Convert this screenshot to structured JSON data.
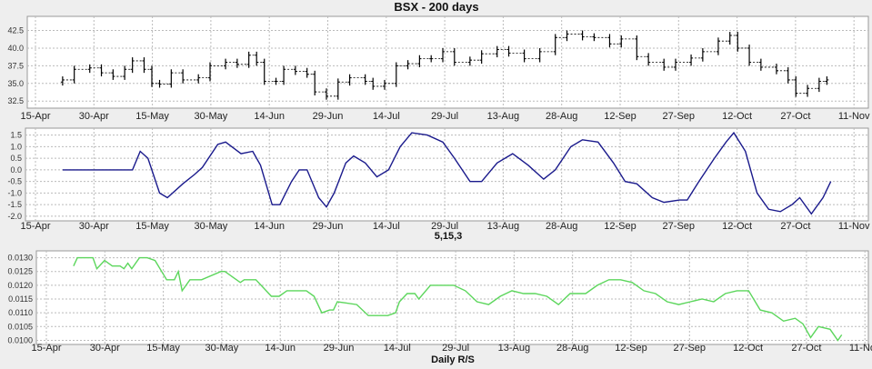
{
  "chart_data": [
    {
      "type": "ohlc",
      "title": "BSX - 200 days",
      "x_ticks": [
        "15-Apr",
        "30-Apr",
        "15-May",
        "30-May",
        "14-Jun",
        "29-Jun",
        "14-Jul",
        "29-Jul",
        "13-Aug",
        "28-Aug",
        "12-Sep",
        "27-Sep",
        "12-Oct",
        "27-Oct",
        "11-Nov"
      ],
      "y_ticks": [
        "32.5",
        "35.0",
        "37.5",
        "40.0",
        "42.5"
      ],
      "ylim": [
        31.5,
        44.5
      ],
      "grid": true,
      "color": "#000000",
      "points": [
        [
          "04-22",
          35.5
        ],
        [
          "04-25",
          37.0
        ],
        [
          "04-29",
          37.2
        ],
        [
          "05-02",
          36.5
        ],
        [
          "05-05",
          36.0
        ],
        [
          "05-08",
          37.0
        ],
        [
          "05-10",
          38.2
        ],
        [
          "05-13",
          37.0
        ],
        [
          "05-15",
          35.0
        ],
        [
          "05-17",
          34.9
        ],
        [
          "05-20",
          36.5
        ],
        [
          "05-23",
          35.5
        ],
        [
          "05-27",
          35.8
        ],
        [
          "05-30",
          37.5
        ],
        [
          "06-03",
          38.0
        ],
        [
          "06-06",
          37.7
        ],
        [
          "06-09",
          39.0
        ],
        [
          "06-11",
          38.0
        ],
        [
          "06-13",
          35.3
        ],
        [
          "06-16",
          35.3
        ],
        [
          "06-18",
          37.0
        ],
        [
          "06-21",
          36.7
        ],
        [
          "06-24",
          36.3
        ],
        [
          "06-26",
          33.8
        ],
        [
          "06-29",
          33.2
        ],
        [
          "07-02",
          35.2
        ],
        [
          "07-05",
          35.8
        ],
        [
          "07-09",
          35.3
        ],
        [
          "07-11",
          34.6
        ],
        [
          "07-14",
          35.0
        ],
        [
          "07-17",
          37.5
        ],
        [
          "07-20",
          37.8
        ],
        [
          "07-23",
          38.5
        ],
        [
          "07-26",
          38.5
        ],
        [
          "07-29",
          39.5
        ],
        [
          "08-01",
          38.0
        ],
        [
          "08-05",
          38.3
        ],
        [
          "08-08",
          39.2
        ],
        [
          "08-12",
          39.8
        ],
        [
          "08-15",
          39.3
        ],
        [
          "08-19",
          38.5
        ],
        [
          "08-23",
          39.5
        ],
        [
          "08-27",
          41.5
        ],
        [
          "08-30",
          42.0
        ],
        [
          "09-03",
          41.6
        ],
        [
          "09-06",
          41.5
        ],
        [
          "09-10",
          40.6
        ],
        [
          "09-13",
          41.3
        ],
        [
          "09-17",
          38.8
        ],
        [
          "09-20",
          38.0
        ],
        [
          "09-24",
          37.3
        ],
        [
          "09-27",
          38.0
        ],
        [
          "10-01",
          38.6
        ],
        [
          "10-04",
          39.5
        ],
        [
          "10-08",
          41.0
        ],
        [
          "10-11",
          41.8
        ],
        [
          "10-13",
          40.0
        ],
        [
          "10-16",
          38.0
        ],
        [
          "10-19",
          37.3
        ],
        [
          "10-23",
          36.8
        ],
        [
          "10-26",
          35.5
        ],
        [
          "10-28",
          33.6
        ],
        [
          "10-31",
          34.3
        ],
        [
          "11-03",
          35.3
        ],
        [
          "11-05",
          35.5
        ]
      ]
    },
    {
      "type": "line",
      "xlabel": "5,15,3",
      "x_ticks": [
        "15-Apr",
        "30-Apr",
        "15-May",
        "30-May",
        "14-Jun",
        "29-Jun",
        "14-Jul",
        "29-Jul",
        "13-Aug",
        "28-Aug",
        "12-Sep",
        "27-Sep",
        "12-Oct",
        "27-Oct",
        "11-Nov"
      ],
      "y_ticks": [
        "-2.0",
        "-1.5",
        "-1.0",
        "-0.5",
        "0.0",
        "0.5",
        "1.0",
        "1.5"
      ],
      "ylim": [
        -2.2,
        1.8
      ],
      "grid": true,
      "color": "#1a1a8c",
      "points": [
        [
          "04-22",
          0
        ],
        [
          "05-10",
          0
        ],
        [
          "05-12",
          0.8
        ],
        [
          "05-14",
          0.5
        ],
        [
          "05-17",
          -1.0
        ],
        [
          "05-19",
          -1.2
        ],
        [
          "05-23",
          -0.6
        ],
        [
          "05-26",
          -0.2
        ],
        [
          "05-28",
          0.1
        ],
        [
          "06-01",
          1.1
        ],
        [
          "06-03",
          1.2
        ],
        [
          "06-07",
          0.7
        ],
        [
          "06-10",
          0.8
        ],
        [
          "06-12",
          0.2
        ],
        [
          "06-15",
          -1.5
        ],
        [
          "06-17",
          -1.5
        ],
        [
          "06-20",
          -0.5
        ],
        [
          "06-22",
          0.0
        ],
        [
          "06-24",
          0.0
        ],
        [
          "06-27",
          -1.2
        ],
        [
          "06-29",
          -1.6
        ],
        [
          "07-01",
          -1.0
        ],
        [
          "07-04",
          0.3
        ],
        [
          "07-06",
          0.6
        ],
        [
          "07-09",
          0.3
        ],
        [
          "07-12",
          -0.3
        ],
        [
          "07-15",
          0.0
        ],
        [
          "07-18",
          1.0
        ],
        [
          "07-21",
          1.6
        ],
        [
          "07-25",
          1.5
        ],
        [
          "07-29",
          1.2
        ],
        [
          "08-01",
          0.5
        ],
        [
          "08-05",
          -0.5
        ],
        [
          "08-08",
          -0.5
        ],
        [
          "08-12",
          0.3
        ],
        [
          "08-16",
          0.7
        ],
        [
          "08-20",
          0.2
        ],
        [
          "08-24",
          -0.4
        ],
        [
          "08-27",
          0.0
        ],
        [
          "08-31",
          1.0
        ],
        [
          "09-03",
          1.3
        ],
        [
          "09-07",
          1.2
        ],
        [
          "09-11",
          0.3
        ],
        [
          "09-14",
          -0.5
        ],
        [
          "09-17",
          -0.6
        ],
        [
          "09-21",
          -1.2
        ],
        [
          "09-24",
          -1.4
        ],
        [
          "09-28",
          -1.3
        ],
        [
          "09-30",
          -1.3
        ],
        [
          "10-03",
          -0.5
        ],
        [
          "10-07",
          0.5
        ],
        [
          "10-10",
          1.2
        ],
        [
          "10-12",
          1.6
        ],
        [
          "10-15",
          0.8
        ],
        [
          "10-18",
          -1.0
        ],
        [
          "10-21",
          -1.7
        ],
        [
          "10-24",
          -1.8
        ],
        [
          "10-27",
          -1.5
        ],
        [
          "10-29",
          -1.2
        ],
        [
          "11-01",
          -1.9
        ],
        [
          "11-04",
          -1.2
        ],
        [
          "11-06",
          -0.5
        ]
      ]
    },
    {
      "type": "line",
      "xlabel": "Daily R/S",
      "x_ticks": [
        "15-Apr",
        "30-Apr",
        "15-May",
        "30-May",
        "14-Jun",
        "29-Jun",
        "14-Jul",
        "29-Jul",
        "13-Aug",
        "28-Aug",
        "12-Sep",
        "27-Sep",
        "12-Oct",
        "27-Oct",
        "11-Nov"
      ],
      "y_ticks": [
        "0.0100",
        "0.0105",
        "0.0110",
        "0.0115",
        "0.0120",
        "0.0125",
        "0.0130"
      ],
      "ylim": [
        0.00985,
        0.01325
      ],
      "grid": true,
      "color": "#5cd65c",
      "points": [
        [
          "04-22",
          0.0127
        ],
        [
          "04-23",
          0.013
        ],
        [
          "04-27",
          0.013
        ],
        [
          "04-28",
          0.0126
        ],
        [
          "04-30",
          0.0129
        ],
        [
          "05-02",
          0.0127
        ],
        [
          "05-04",
          0.0127
        ],
        [
          "05-05",
          0.0126
        ],
        [
          "05-06",
          0.0128
        ],
        [
          "05-07",
          0.0126
        ],
        [
          "05-09",
          0.013
        ],
        [
          "05-11",
          0.013
        ],
        [
          "05-13",
          0.0129
        ],
        [
          "05-16",
          0.0122
        ],
        [
          "05-18",
          0.0122
        ],
        [
          "05-19",
          0.0125
        ],
        [
          "05-20",
          0.0118
        ],
        [
          "05-22",
          0.0122
        ],
        [
          "05-25",
          0.0122
        ],
        [
          "05-30",
          0.0125
        ],
        [
          "05-31",
          0.0125
        ],
        [
          "06-04",
          0.0121
        ],
        [
          "06-05",
          0.0122
        ],
        [
          "06-08",
          0.0122
        ],
        [
          "06-12",
          0.0116
        ],
        [
          "06-14",
          0.0116
        ],
        [
          "06-16",
          0.0118
        ],
        [
          "06-21",
          0.0118
        ],
        [
          "06-23",
          0.0116
        ],
        [
          "06-25",
          0.011
        ],
        [
          "06-27",
          0.0111
        ],
        [
          "06-28",
          0.0111
        ],
        [
          "06-29",
          0.0114
        ],
        [
          "07-04",
          0.0113
        ],
        [
          "07-07",
          0.0109
        ],
        [
          "07-12",
          0.0109
        ],
        [
          "07-14",
          0.011
        ],
        [
          "07-15",
          0.0114
        ],
        [
          "07-17",
          0.0117
        ],
        [
          "07-19",
          0.0117
        ],
        [
          "07-20",
          0.0115
        ],
        [
          "07-23",
          0.012
        ],
        [
          "07-29",
          0.012
        ],
        [
          "08-01",
          0.0118
        ],
        [
          "08-04",
          0.0114
        ],
        [
          "08-07",
          0.0113
        ],
        [
          "08-10",
          0.0116
        ],
        [
          "08-13",
          0.0118
        ],
        [
          "08-16",
          0.0117
        ],
        [
          "08-19",
          0.0117
        ],
        [
          "08-22",
          0.0116
        ],
        [
          "08-25",
          0.0113
        ],
        [
          "08-28",
          0.0117
        ],
        [
          "09-01",
          0.0117
        ],
        [
          "09-04",
          0.012
        ],
        [
          "09-07",
          0.0122
        ],
        [
          "09-10",
          0.0122
        ],
        [
          "09-13",
          0.0121
        ],
        [
          "09-16",
          0.0118
        ],
        [
          "09-19",
          0.0117
        ],
        [
          "09-22",
          0.0114
        ],
        [
          "09-25",
          0.0113
        ],
        [
          "09-28",
          0.0114
        ],
        [
          "10-01",
          0.0115
        ],
        [
          "10-04",
          0.0114
        ],
        [
          "10-07",
          0.0117
        ],
        [
          "10-10",
          0.0118
        ],
        [
          "10-13",
          0.0118
        ],
        [
          "10-16",
          0.0111
        ],
        [
          "10-19",
          0.011
        ],
        [
          "10-22",
          0.0107
        ],
        [
          "10-25",
          0.0108
        ],
        [
          "10-27",
          0.0106
        ],
        [
          "10-29",
          0.0101
        ],
        [
          "10-31",
          0.0105
        ],
        [
          "11-03",
          0.0104
        ],
        [
          "11-05",
          0.01
        ],
        [
          "11-06",
          0.0102
        ]
      ]
    }
  ]
}
